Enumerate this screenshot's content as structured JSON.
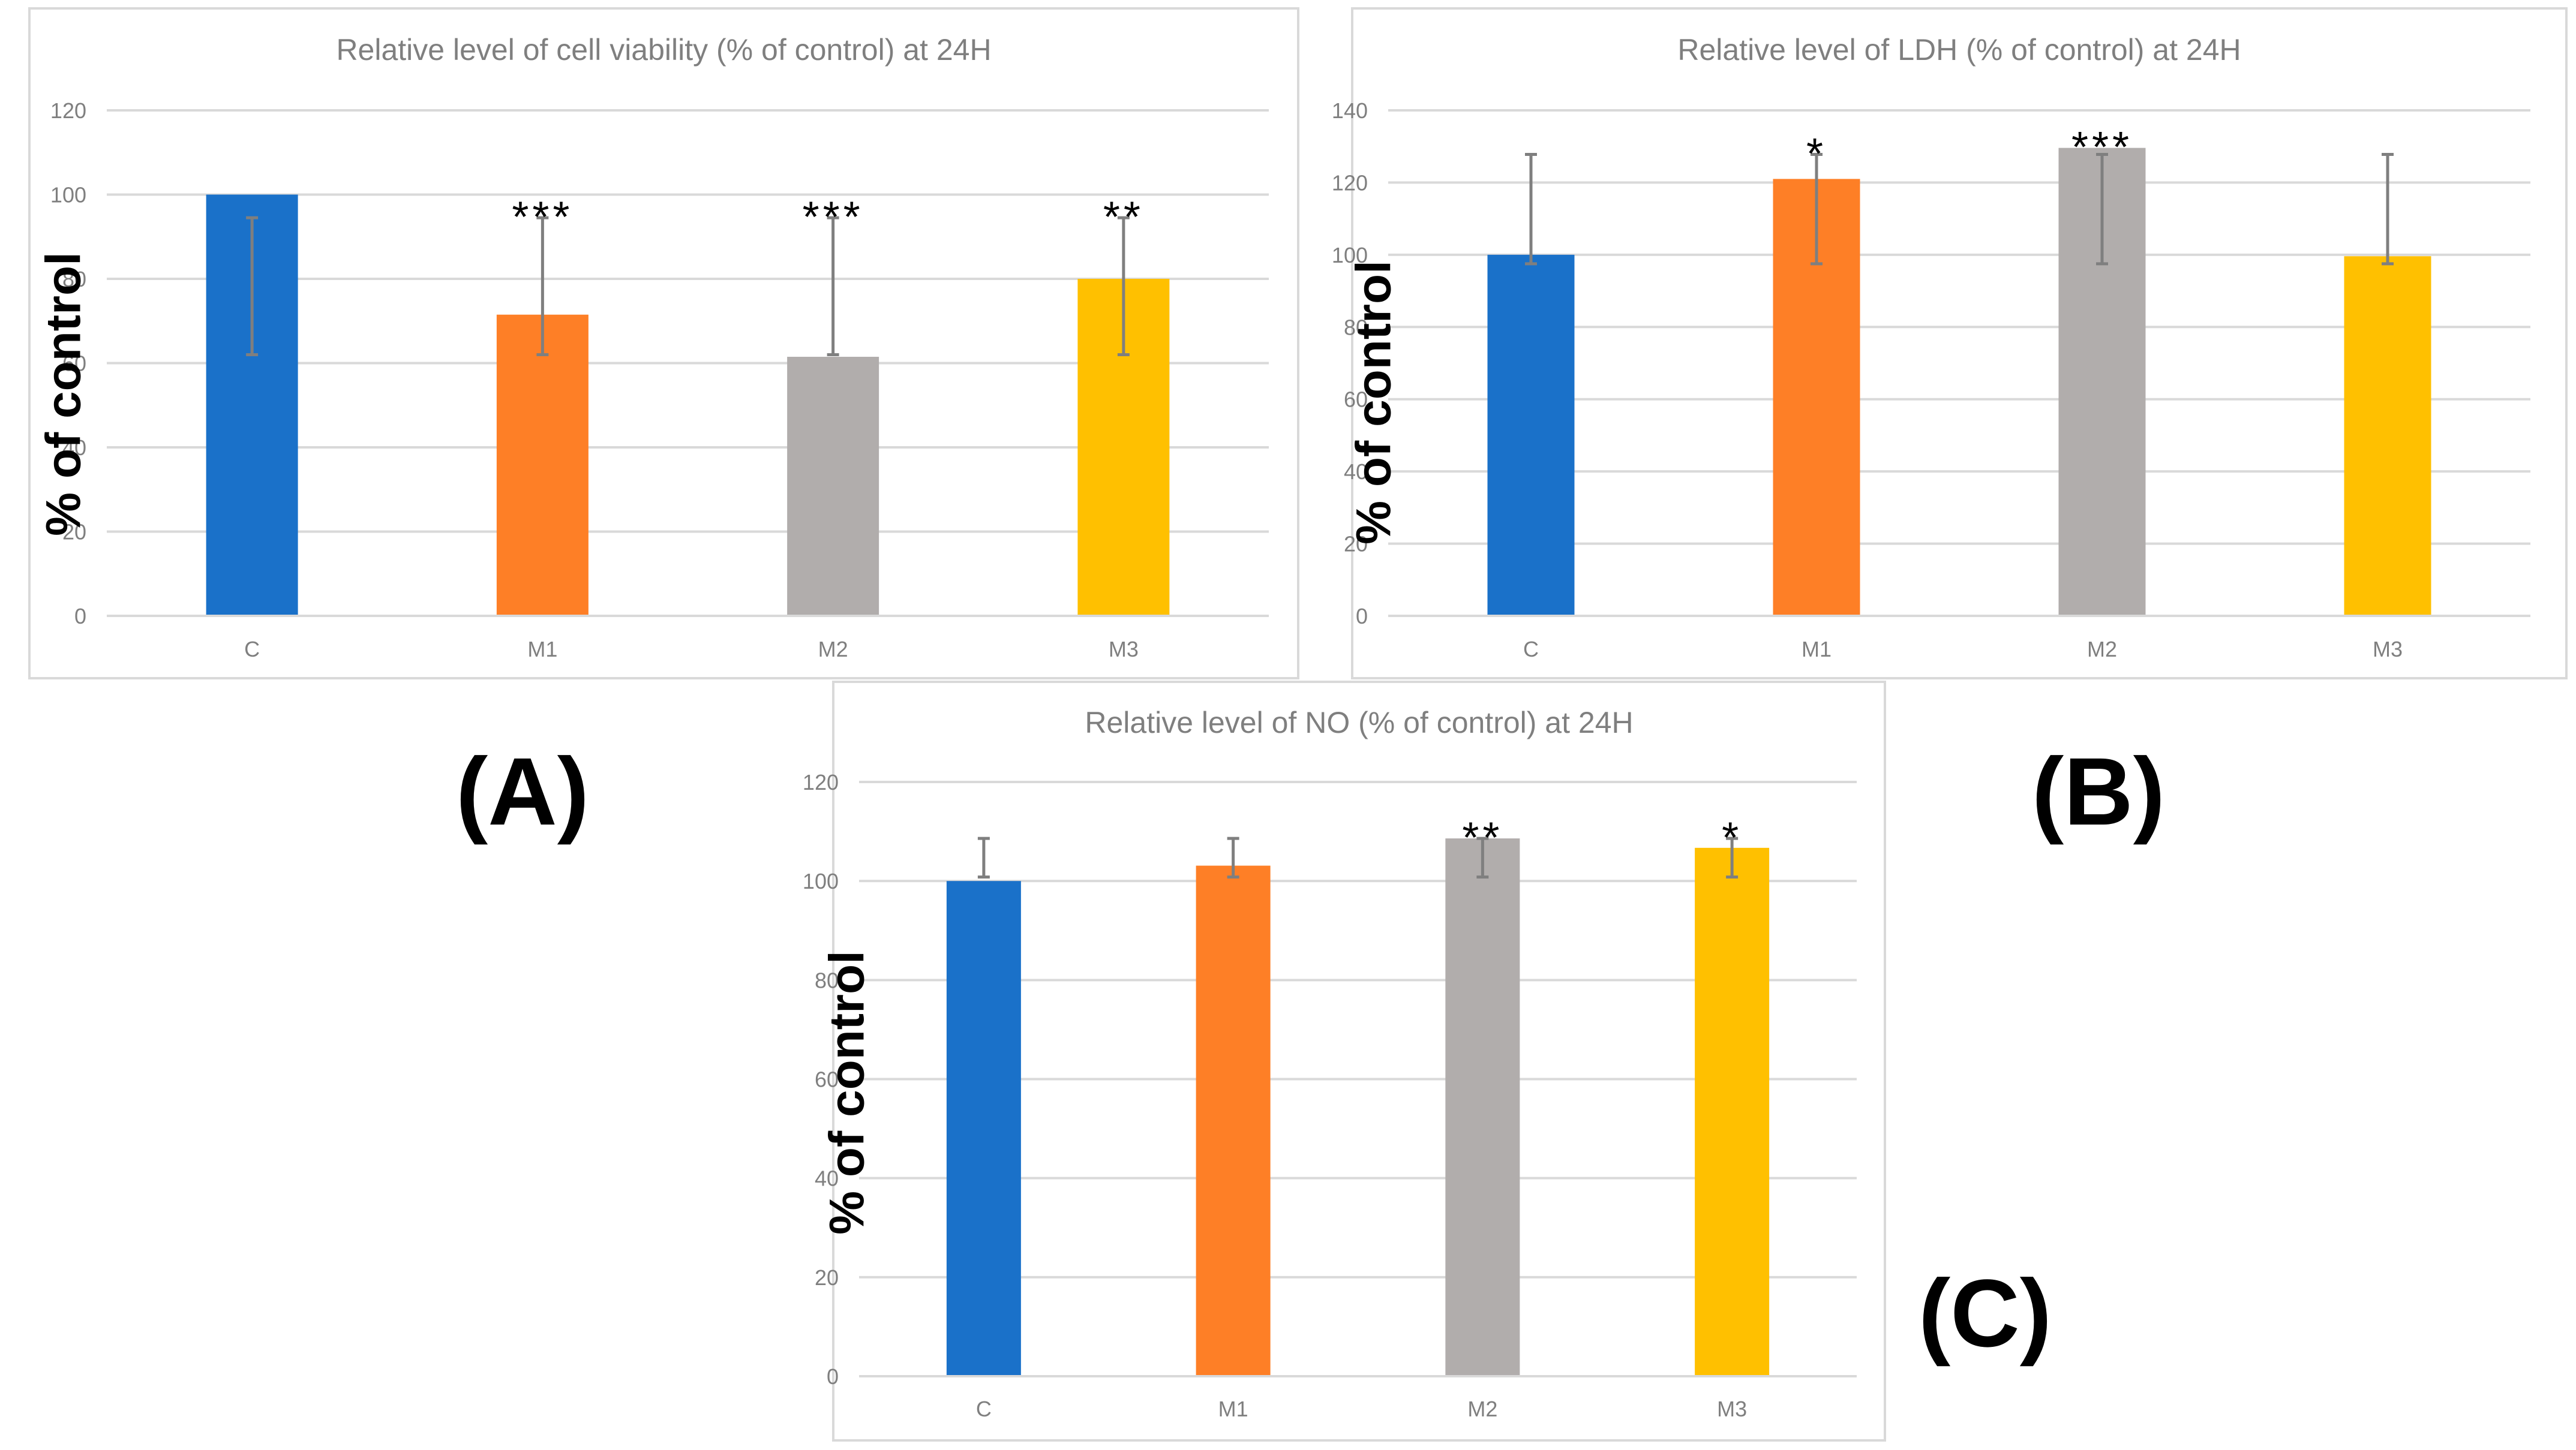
{
  "chart_data": [
    {
      "id": "A",
      "type": "bar",
      "title": "Relative level of cell viability (% of control) at 24H",
      "ylabel": "% of control",
      "panel_label": "(A)",
      "categories": [
        "C",
        "M1",
        "M2",
        "M3"
      ],
      "values": [
        100,
        71.5,
        61.5,
        80
      ],
      "error_low": [
        62,
        62,
        62,
        62
      ],
      "error_high": [
        94.5,
        94.5,
        94.5,
        94.5
      ],
      "annotations": [
        "",
        "***",
        "***",
        "**"
      ],
      "ylim": [
        0,
        120
      ],
      "yticks": [
        0,
        20,
        40,
        60,
        80,
        100,
        120
      ],
      "colors": [
        "#1a71c9",
        "#fe7f26",
        "#b1adac",
        "#ffc000"
      ],
      "grid": true
    },
    {
      "id": "B",
      "type": "bar",
      "title": "Relative level of LDH (% of control) at 24H",
      "ylabel": "% of control",
      "panel_label": "(B)",
      "categories": [
        "C",
        "M1",
        "M2",
        "M3"
      ],
      "values": [
        100,
        121,
        129.6,
        99.6
      ],
      "error_low": [
        97.5,
        97.5,
        97.5,
        97.5
      ],
      "error_high": [
        127.8,
        127.8,
        127.8,
        127.8
      ],
      "annotations": [
        "",
        "*",
        "***",
        ""
      ],
      "ylim": [
        0,
        140
      ],
      "yticks": [
        0,
        20,
        40,
        60,
        80,
        100,
        120,
        140
      ],
      "colors": [
        "#1a71c9",
        "#fe7f26",
        "#b1adac",
        "#ffc000"
      ],
      "grid": true
    },
    {
      "id": "C",
      "type": "bar",
      "title": "Relative level of NO  (% of control) at 24H",
      "ylabel": "% of control",
      "panel_label": "(C)",
      "categories": [
        "C",
        "M1",
        "M2",
        "M3"
      ],
      "values": [
        100,
        103.1,
        108.6,
        106.7
      ],
      "error_low": [
        100.8,
        100.8,
        100.8,
        100.8
      ],
      "error_high": [
        108.6,
        108.6,
        108.6,
        108.6
      ],
      "annotations": [
        "",
        "",
        "**",
        "*"
      ],
      "ylim": [
        0,
        120
      ],
      "yticks": [
        0,
        20,
        40,
        60,
        80,
        100,
        120
      ],
      "colors": [
        "#1a71c9",
        "#fe7f26",
        "#b1adac",
        "#ffc000"
      ],
      "grid": true
    }
  ]
}
